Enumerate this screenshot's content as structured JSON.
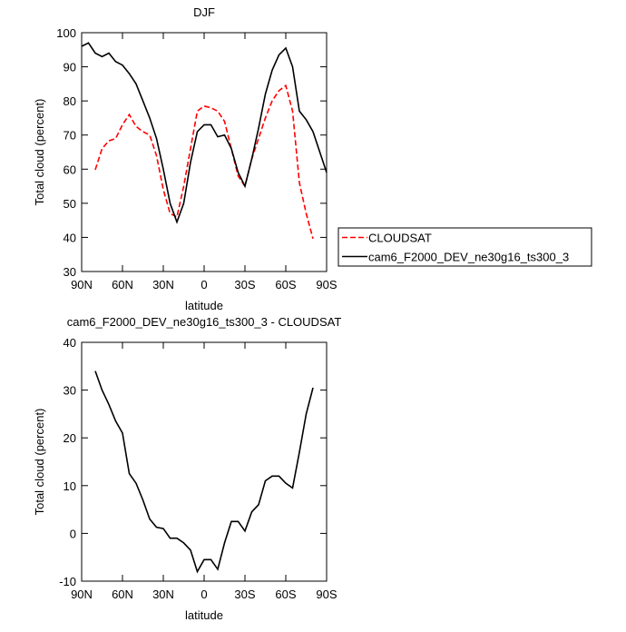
{
  "chart_data": [
    {
      "type": "line",
      "title": "DJF",
      "xlabel": "latitude",
      "ylabel": "Total cloud (percent)",
      "x": [
        90,
        85,
        80,
        75,
        70,
        65,
        60,
        55,
        50,
        45,
        40,
        35,
        30,
        25,
        20,
        15,
        10,
        5,
        0,
        -5,
        -10,
        -15,
        -20,
        -25,
        -30,
        -35,
        -40,
        -45,
        -50,
        -55,
        -60,
        -65,
        -70,
        -75,
        -80,
        -85,
        -90
      ],
      "series": [
        {
          "name": "CLOUDSAT",
          "color": "#ff0000",
          "linestyle": "dashed",
          "values": [
            null,
            null,
            59.8,
            66,
            68.3,
            69,
            73,
            76,
            72.5,
            71,
            70,
            64,
            54,
            47,
            46,
            55,
            66,
            77,
            78.5,
            78,
            77,
            74,
            66,
            58,
            55,
            63,
            69,
            75,
            80,
            83,
            84.5,
            77,
            56,
            47,
            39.6,
            null,
            null
          ]
        },
        {
          "name": "cam6_F2000_DEV_ne30g16_ts300_3",
          "color": "#000000",
          "linestyle": "solid",
          "values": [
            96,
            97,
            94,
            93,
            94,
            91.5,
            90.5,
            88,
            85,
            80,
            75,
            69,
            60,
            50,
            44.5,
            50,
            62,
            71,
            73,
            73,
            69.5,
            70,
            66,
            59,
            55,
            63,
            72,
            82,
            89,
            93.5,
            95.5,
            90,
            77,
            74.5,
            71,
            65,
            59
          ]
        }
      ],
      "xlim": [
        90,
        -90
      ],
      "xticks": [
        {
          "value": 90,
          "label": "90N"
        },
        {
          "value": 60,
          "label": "60N"
        },
        {
          "value": 30,
          "label": "30N"
        },
        0,
        {
          "value": -30,
          "label": "30S"
        },
        {
          "value": -60,
          "label": "60S"
        },
        {
          "value": -90,
          "label": "90S"
        }
      ],
      "ylim": [
        30,
        100
      ],
      "yticks": [
        30,
        40,
        50,
        60,
        70,
        80,
        90,
        100
      ],
      "legend": "right"
    },
    {
      "type": "line",
      "title": "cam6_F2000_DEV_ne30g16_ts300_3 - CLOUDSAT",
      "xlabel": "latitude",
      "ylabel": "Total cloud (percent)",
      "x": [
        90,
        85,
        80,
        75,
        70,
        65,
        60,
        55,
        50,
        45,
        40,
        35,
        30,
        25,
        20,
        15,
        10,
        5,
        0,
        -5,
        -10,
        -15,
        -20,
        -25,
        -30,
        -35,
        -40,
        -45,
        -50,
        -55,
        -60,
        -65,
        -70,
        -75,
        -80,
        -85,
        -90
      ],
      "series": [
        {
          "color": "#000000",
          "linestyle": "solid",
          "values": [
            null,
            null,
            34,
            30,
            27,
            23.5,
            21,
            12.5,
            10.5,
            7,
            3,
            1.3,
            1,
            -1,
            -1,
            -2,
            -3.5,
            -8,
            -5.5,
            -5.5,
            -7.5,
            -2,
            2.5,
            2.5,
            0.5,
            4.5,
            6,
            11,
            12,
            12,
            10.5,
            9.5,
            17,
            25,
            30.5,
            null,
            null
          ]
        }
      ],
      "xlim": [
        90,
        -90
      ],
      "xticks": [
        {
          "value": 90,
          "label": "90N"
        },
        {
          "value": 60,
          "label": "60N"
        },
        {
          "value": 30,
          "label": "30N"
        },
        0,
        {
          "value": -30,
          "label": "30S"
        },
        {
          "value": -60,
          "label": "60S"
        },
        {
          "value": -90,
          "label": "90S"
        }
      ],
      "ylim": [
        -10,
        40
      ],
      "yticks": [
        -10,
        0,
        10,
        20,
        30,
        40
      ]
    }
  ]
}
